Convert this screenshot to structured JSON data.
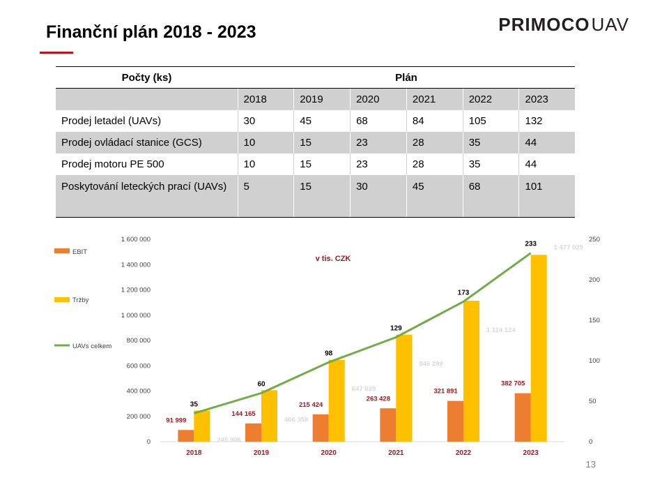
{
  "page": {
    "title": "Finanční plán 2018 - 2023",
    "logo_brand": "PRIMOCO",
    "logo_suffix": "UAV",
    "page_number": "13"
  },
  "table": {
    "header_left": "Počty (ks)",
    "header_right": "Plán",
    "years": [
      "2018",
      "2019",
      "2020",
      "2021",
      "2022",
      "2023"
    ],
    "rows": [
      {
        "label": "Prodej letadel (UAVs)",
        "values": [
          "30",
          "45",
          "68",
          "84",
          "105",
          "132"
        ]
      },
      {
        "label": "Prodej ovládací stanice (GCS)",
        "values": [
          "10",
          "15",
          "23",
          "28",
          "35",
          "44"
        ]
      },
      {
        "label": "Prodej motoru PE 500",
        "values": [
          "10",
          "15",
          "23",
          "28",
          "35",
          "44"
        ]
      },
      {
        "label": "Poskytování leteckých prací (UAVs)",
        "values": [
          "5",
          "15",
          "30",
          "45",
          "68",
          "101"
        ]
      }
    ]
  },
  "chart_data": {
    "type": "bar",
    "annotation": "v tis. CZK",
    "categories": [
      "2018",
      "2019",
      "2020",
      "2021",
      "2022",
      "2023"
    ],
    "series": [
      {
        "name": "EBIT",
        "type": "bar",
        "axis": "left",
        "color": "#ed7d31",
        "values": [
          91999,
          144165,
          215424,
          263428,
          321891,
          382705
        ],
        "labels": [
          "91 999",
          "144 165",
          "215 424",
          "263 428",
          "321 891",
          "382 705"
        ]
      },
      {
        "name": "Tržby",
        "type": "bar",
        "axis": "left",
        "color": "#ffc000",
        "values": [
          245906,
          406359,
          647039,
          846299,
          1114124,
          1477029
        ],
        "labels": [
          "245 906",
          "406 359",
          "647 039",
          "846 299",
          "1 114 124",
          "1 477 029"
        ]
      },
      {
        "name": "UAVs celkem",
        "type": "line",
        "axis": "right",
        "color": "#70ad47",
        "values": [
          35,
          60,
          98,
          129,
          173,
          233
        ],
        "labels": [
          "35",
          "60",
          "98",
          "129",
          "173",
          "233"
        ]
      }
    ],
    "y_left": {
      "min": 0,
      "max": 1600000,
      "step": 200000,
      "ticks": [
        "0",
        "200 000",
        "400 000",
        "600 000",
        "800 000",
        "1 000 000",
        "1 200 000",
        "1 400 000",
        "1 600 000"
      ]
    },
    "y_right": {
      "min": 0,
      "max": 250,
      "step": 50,
      "ticks": [
        "0",
        "50",
        "100",
        "150",
        "200",
        "250"
      ]
    },
    "legend": "left",
    "grid": false,
    "colors": {
      "ebit_label": "#a01822",
      "trzby_label": "#d9d9d9",
      "line_label": "#000000",
      "tick": "#404040",
      "category": "#a01822"
    }
  }
}
